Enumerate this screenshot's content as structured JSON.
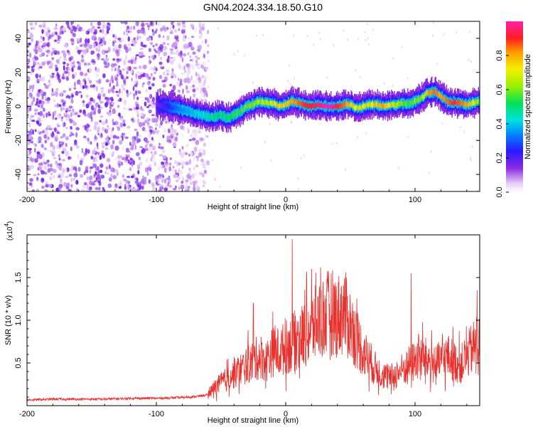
{
  "title": "GN04.2024.334.18.50.G10",
  "colors": {
    "snr_line": "#e8302c",
    "background": "#ffffff",
    "axis": "#000000"
  },
  "chart_data": [
    {
      "type": "heatmap",
      "title": "",
      "xlabel": "Height of straight line (km)",
      "ylabel": "Frequency (Hz)",
      "xlim": [
        -200,
        150
      ],
      "ylim": [
        -50,
        50
      ],
      "x_ticks": [
        -200,
        -100,
        0,
        100
      ],
      "x_tick_labels": [
        "-200",
        "-100",
        "0",
        "100"
      ],
      "y_ticks": [
        -40,
        -20,
        0,
        20,
        40
      ],
      "y_tick_labels": [
        "-40",
        "-20",
        "0",
        "20",
        "40"
      ],
      "colorbar": {
        "label": "Normalized spectral amplitude",
        "range": [
          0,
          1
        ],
        "ticks": [
          0,
          0.2,
          0.4,
          0.6,
          0.8
        ],
        "tick_labels": [
          "0.0",
          "0.2",
          "0.4",
          "0.6",
          "0.8"
        ]
      },
      "noise_region_x": [
        -200,
        -60
      ],
      "signal_track": {
        "x": [
          -100,
          -90,
          -80,
          -70,
          -60,
          -55,
          -50,
          -45,
          -40,
          -35,
          -30,
          -25,
          -20,
          -15,
          -10,
          -5,
          0,
          5,
          10,
          15,
          20,
          25,
          30,
          35,
          40,
          45,
          50,
          55,
          60,
          65,
          70,
          75,
          80,
          85,
          90,
          95,
          100,
          105,
          110,
          115,
          120,
          125,
          130,
          135,
          140,
          145,
          150
        ],
        "frequency": [
          1,
          0,
          -2,
          -4,
          -6,
          -6,
          -5,
          -7,
          -5,
          -3,
          0,
          1,
          3,
          2,
          2,
          0,
          1,
          3,
          2,
          1,
          0,
          1,
          0,
          0,
          0,
          1,
          1,
          -1,
          0,
          1,
          1,
          0,
          1,
          1,
          2,
          1,
          3,
          5,
          8,
          9,
          6,
          3,
          2,
          2,
          1,
          2,
          3
        ],
        "amplitude": [
          0.15,
          0.25,
          0.35,
          0.4,
          0.45,
          0.5,
          0.5,
          0.5,
          0.55,
          0.55,
          0.6,
          0.6,
          0.65,
          0.65,
          0.7,
          0.75,
          0.75,
          0.8,
          0.85,
          0.9,
          0.9,
          0.95,
          1.0,
          1.0,
          0.9,
          0.85,
          0.75,
          0.7,
          0.7,
          0.7,
          0.75,
          0.8,
          0.7,
          0.65,
          0.6,
          0.55,
          0.6,
          0.6,
          0.8,
          0.85,
          0.8,
          0.85,
          0.9,
          0.85,
          0.8,
          0.7,
          0.6
        ]
      }
    },
    {
      "type": "line",
      "title": "",
      "xlabel": "Height of straight line (km)",
      "ylabel": "SNR (10 * v/v)",
      "y_multiplier_label": "(x10",
      "y_multiplier_exp": "4",
      "y_multiplier_close": ")",
      "xlim": [
        -200,
        150
      ],
      "ylim": [
        0,
        2.0
      ],
      "x_ticks": [
        -200,
        -100,
        0,
        100
      ],
      "x_tick_labels": [
        "-200",
        "-100",
        "0",
        "100"
      ],
      "y_ticks": [
        0.5,
        1.0,
        1.5
      ],
      "y_tick_labels": [
        "0.5",
        "1.0",
        "1.5"
      ],
      "series": [
        {
          "x": [
            -200,
            -180,
            -160,
            -140,
            -120,
            -100,
            -80,
            -70,
            -60,
            -55,
            -50,
            -45,
            -40,
            -35,
            -30,
            -25,
            -20,
            -15,
            -10,
            -5,
            0,
            5,
            10,
            15,
            20,
            25,
            30,
            35,
            40,
            45,
            50,
            55,
            60,
            65,
            70,
            75,
            80,
            85,
            90,
            95,
            100,
            105,
            110,
            115,
            120,
            125,
            130,
            135,
            140,
            145,
            150
          ],
          "values": [
            0.06,
            0.07,
            0.07,
            0.07,
            0.08,
            0.08,
            0.09,
            0.1,
            0.12,
            0.2,
            0.25,
            0.3,
            0.35,
            0.4,
            0.45,
            0.5,
            0.55,
            0.5,
            0.6,
            0.6,
            0.65,
            0.7,
            0.75,
            0.8,
            0.85,
            0.95,
            1.0,
            1.05,
            1.0,
            1.05,
            0.9,
            0.75,
            0.6,
            0.5,
            0.4,
            0.35,
            0.3,
            0.35,
            0.4,
            0.45,
            0.5,
            0.55,
            0.5,
            0.45,
            0.5,
            0.55,
            0.5,
            0.45,
            0.55,
            0.65,
            0.7
          ],
          "peaks": [
            {
              "x": 5,
              "value": 1.95
            },
            {
              "x": 20,
              "value": 1.6
            },
            {
              "x": 27,
              "value": 1.62
            },
            {
              "x": -25,
              "value": 1.2
            },
            {
              "x": 97,
              "value": 1.55
            },
            {
              "x": 148,
              "value": 1.35
            }
          ]
        }
      ]
    }
  ]
}
